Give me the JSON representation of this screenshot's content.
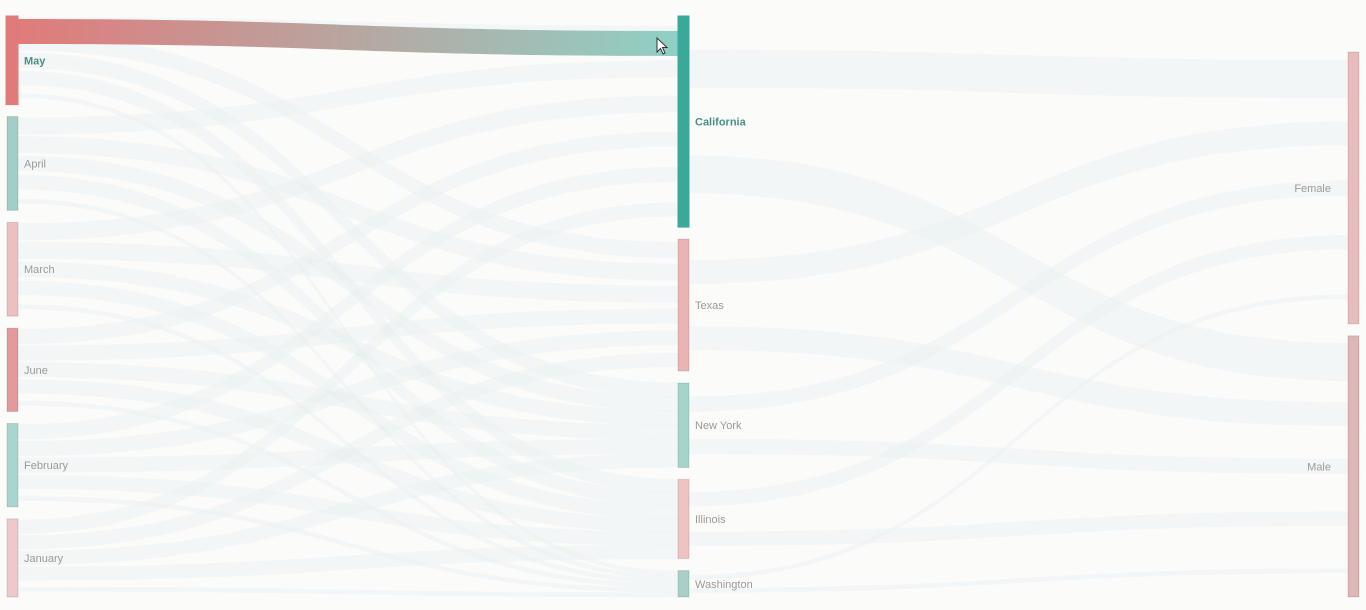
{
  "chart_data": {
    "type": "sankey",
    "title": "",
    "highlighted_node": "May",
    "highlighted_link": {
      "source": "May",
      "target": "California"
    },
    "columns": [
      {
        "nodes": [
          {
            "name": "May",
            "value": 17,
            "color": "#e07b7b"
          },
          {
            "name": "April",
            "value": 18,
            "color": "#9fcfc6"
          },
          {
            "name": "March",
            "value": 18,
            "color": "#eebfbf"
          },
          {
            "name": "June",
            "value": 16,
            "color": "#e29a9a"
          },
          {
            "name": "February",
            "value": 16,
            "color": "#a6d6cd"
          },
          {
            "name": "January",
            "value": 15,
            "color": "#efc9c9"
          }
        ]
      },
      {
        "nodes": [
          {
            "name": "California",
            "value": 40,
            "color": "#3aa99a"
          },
          {
            "name": "Texas",
            "value": 25,
            "color": "#eab4b4"
          },
          {
            "name": "New York",
            "value": 16,
            "color": "#a6d3cb"
          },
          {
            "name": "Illinois",
            "value": 15,
            "color": "#efc3c3"
          },
          {
            "name": "Washington",
            "value": 5,
            "color": "#a9cfc8"
          }
        ]
      },
      {
        "nodes": [
          {
            "name": "Female",
            "value": 51,
            "color": "#e8bcbc"
          },
          {
            "name": "Male",
            "value": 49,
            "color": "#ddb6b6"
          }
        ]
      }
    ],
    "colors": {
      "background": "#fbfbfa",
      "link_faint": "#e6efed",
      "highlight_from": "#e07b7b",
      "highlight_to": "#8fd0c5",
      "label": "#9a9a9a",
      "label_highlight": "#4a8f86"
    }
  }
}
